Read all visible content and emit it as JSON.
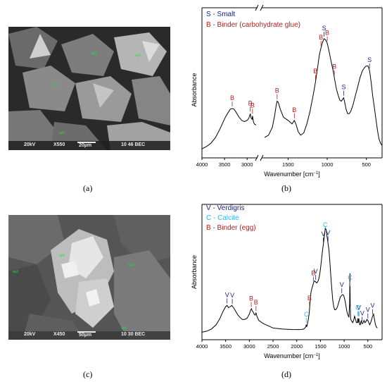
{
  "panels": {
    "a": {
      "label": "(a)"
    },
    "b": {
      "label": "(b)"
    },
    "c": {
      "label": "(c)"
    },
    "d": {
      "label": "(d)"
    }
  },
  "sem_a": {
    "info": {
      "kv": "20kV",
      "mag": "X550",
      "scale": "20µm",
      "code": "10 46 BEC"
    },
    "spots": [
      "sp1",
      "sp2",
      "sp3",
      "sp4"
    ]
  },
  "sem_c": {
    "info": {
      "kv": "20kV",
      "mag": "X450",
      "scale": "50µm",
      "code": "10 30 BEC"
    },
    "spots": [
      "sp1",
      "sp2",
      "sp3",
      "sp4"
    ]
  },
  "colors": {
    "smalt": "#1a237e",
    "binder": "#b71c1c",
    "verdigris": "#1a237e",
    "calcite": "#29b6f6",
    "spectrum": "#000000"
  },
  "chart_data": [
    {
      "type": "line",
      "panel": "b",
      "xlabel": "Wavenumber [cm",
      "xlabel_sup": "−1",
      "xlabel_end": "]",
      "ylabel": "Absorbance",
      "x_ticks": [
        "4000",
        "3500",
        "3000",
        "1500",
        "1000",
        "500"
      ],
      "axis_break": true,
      "legend": [
        {
          "text": "S - Smalt",
          "color": "#1a237e"
        },
        {
          "text": "B - Binder (carbohydrate glue)",
          "color": "#b71c1c"
        }
      ],
      "peaks": [
        {
          "letter": "B",
          "x": 3330,
          "color": "#b71c1c"
        },
        {
          "letter": "B",
          "x": 2930,
          "color": "#b71c1c"
        },
        {
          "letter": "B",
          "x": 2880,
          "color": "#b71c1c"
        },
        {
          "letter": "B",
          "x": 1640,
          "color": "#b71c1c"
        },
        {
          "letter": "B",
          "x": 1420,
          "color": "#b71c1c"
        },
        {
          "letter": "B",
          "x": 1150,
          "color": "#b71c1c"
        },
        {
          "letter": "B",
          "x": 1080,
          "color": "#b71c1c"
        },
        {
          "letter": "S",
          "x": 1040,
          "color": "#1a237e"
        },
        {
          "letter": "B",
          "x": 1000,
          "color": "#b71c1c"
        },
        {
          "letter": "B",
          "x": 910,
          "color": "#b71c1c"
        },
        {
          "letter": "S",
          "x": 790,
          "color": "#1a237e"
        },
        {
          "letter": "S",
          "x": 460,
          "color": "#1a237e"
        }
      ],
      "series_left": {
        "x": [
          4000,
          3900,
          3800,
          3700,
          3620,
          3550,
          3480,
          3420,
          3370,
          3330,
          3290,
          3240,
          3180,
          3120,
          3060,
          3000,
          2960,
          2930,
          2910,
          2890,
          2880,
          2860,
          2840,
          2800
        ],
        "y": [
          0.03,
          0.05,
          0.08,
          0.13,
          0.19,
          0.25,
          0.31,
          0.35,
          0.38,
          0.385,
          0.38,
          0.35,
          0.31,
          0.28,
          0.27,
          0.28,
          0.3,
          0.34,
          0.3,
          0.29,
          0.32,
          0.27,
          0.25,
          0.24
        ]
      },
      "series_right": {
        "x": [
          1800,
          1750,
          1700,
          1670,
          1650,
          1640,
          1625,
          1600,
          1560,
          1520,
          1480,
          1450,
          1420,
          1400,
          1370,
          1340,
          1300,
          1260,
          1220,
          1180,
          1150,
          1120,
          1100,
          1080,
          1060,
          1040,
          1020,
          1000,
          980,
          950,
          920,
          900,
          880,
          860,
          840,
          820,
          800,
          790,
          780,
          760,
          740,
          720,
          700,
          670,
          640,
          610,
          580,
          550,
          520,
          500,
          480,
          460,
          440,
          420,
          400,
          380,
          360,
          340,
          320,
          300
        ],
        "y": [
          0.13,
          0.15,
          0.22,
          0.33,
          0.42,
          0.45,
          0.44,
          0.38,
          0.31,
          0.29,
          0.27,
          0.25,
          0.28,
          0.25,
          0.18,
          0.15,
          0.17,
          0.25,
          0.36,
          0.5,
          0.62,
          0.76,
          0.86,
          0.92,
          0.97,
          1.0,
          0.99,
          0.96,
          0.9,
          0.8,
          0.7,
          0.62,
          0.55,
          0.5,
          0.46,
          0.45,
          0.47,
          0.48,
          0.45,
          0.38,
          0.34,
          0.34,
          0.36,
          0.42,
          0.5,
          0.58,
          0.66,
          0.72,
          0.75,
          0.76,
          0.76,
          0.72,
          0.62,
          0.5,
          0.4,
          0.3,
          0.2,
          0.12,
          0.08,
          0.06
        ]
      }
    },
    {
      "type": "line",
      "panel": "d",
      "xlabel": "Wavenumber [cm",
      "xlabel_sup": "−1",
      "xlabel_end": "]",
      "ylabel": "Absorbance",
      "x_ticks": [
        "4000",
        "3500",
        "3000",
        "2500",
        "2000",
        "1500",
        "1000",
        "500"
      ],
      "axis_break": false,
      "legend": [
        {
          "text": "V - Verdigris",
          "color": "#1a237e"
        },
        {
          "text": "C - Calcite",
          "color": "#29b6f6"
        },
        {
          "text": "B - Binder (egg)",
          "color": "#b71c1c"
        }
      ],
      "peaks": [
        {
          "letter": "V",
          "x": 3470,
          "color": "#1a237e"
        },
        {
          "letter": "V",
          "x": 3360,
          "color": "#1a237e"
        },
        {
          "letter": "B",
          "x": 2960,
          "color": "#b71c1c"
        },
        {
          "letter": "B",
          "x": 2860,
          "color": "#b71c1c"
        },
        {
          "letter": "C",
          "x": 1800,
          "color": "#29b6f6"
        },
        {
          "letter": "B",
          "x": 1730,
          "color": "#b71c1c"
        },
        {
          "letter": "B",
          "x": 1650,
          "color": "#b71c1c"
        },
        {
          "letter": "V",
          "x": 1600,
          "color": "#1a237e"
        },
        {
          "letter": "V",
          "x": 1440,
          "color": "#1a237e"
        },
        {
          "letter": "C",
          "x": 1400,
          "color": "#29b6f6"
        },
        {
          "letter": "V",
          "x": 1340,
          "color": "#1a237e"
        },
        {
          "letter": "V",
          "x": 1050,
          "color": "#1a237e"
        },
        {
          "letter": "C",
          "x": 875,
          "color": "#29b6f6"
        },
        {
          "letter": "C",
          "x": 712,
          "color": "#29b6f6"
        },
        {
          "letter": "V",
          "x": 690,
          "color": "#1a237e"
        },
        {
          "letter": "V",
          "x": 620,
          "color": "#1a237e"
        },
        {
          "letter": "V",
          "x": 500,
          "color": "#1a237e"
        },
        {
          "letter": "V",
          "x": 400,
          "color": "#1a237e"
        }
      ],
      "series": {
        "x": [
          4000,
          3900,
          3800,
          3700,
          3620,
          3560,
          3500,
          3470,
          3440,
          3400,
          3370,
          3350,
          3320,
          3280,
          3240,
          3200,
          3150,
          3100,
          3050,
          3000,
          2970,
          2955,
          2940,
          2920,
          2900,
          2880,
          2860,
          2840,
          2800,
          2700,
          2600,
          2500,
          2400,
          2300,
          2200,
          2100,
          2000,
          1950,
          1900,
          1850,
          1810,
          1800,
          1790,
          1780,
          1760,
          1740,
          1720,
          1700,
          1680,
          1660,
          1640,
          1620,
          1600,
          1580,
          1560,
          1540,
          1520,
          1500,
          1480,
          1460,
          1440,
          1420,
          1400,
          1380,
          1360,
          1340,
          1320,
          1300,
          1280,
          1260,
          1240,
          1220,
          1200,
          1180,
          1160,
          1140,
          1120,
          1100,
          1080,
          1060,
          1040,
          1020,
          1000,
          980,
          960,
          940,
          920,
          900,
          885,
          878,
          872,
          865,
          850,
          820,
          800,
          780,
          760,
          740,
          720,
          712,
          705,
          700,
          690,
          680,
          670,
          660,
          650,
          640,
          630,
          620,
          600,
          580,
          560,
          540,
          520,
          500,
          480,
          460,
          440,
          420,
          400,
          380,
          360,
          340,
          320,
          300
        ],
        "y": [
          0.03,
          0.04,
          0.06,
          0.1,
          0.16,
          0.22,
          0.27,
          0.28,
          0.26,
          0.27,
          0.28,
          0.27,
          0.25,
          0.22,
          0.19,
          0.17,
          0.15,
          0.15,
          0.16,
          0.2,
          0.24,
          0.25,
          0.23,
          0.22,
          0.2,
          0.19,
          0.21,
          0.18,
          0.14,
          0.11,
          0.09,
          0.07,
          0.065,
          0.06,
          0.058,
          0.056,
          0.055,
          0.055,
          0.056,
          0.06,
          0.08,
          0.1,
          0.08,
          0.1,
          0.14,
          0.2,
          0.3,
          0.4,
          0.44,
          0.47,
          0.5,
          0.51,
          0.5,
          0.49,
          0.5,
          0.52,
          0.56,
          0.62,
          0.7,
          0.78,
          0.85,
          0.92,
          1.0,
          0.99,
          0.92,
          0.86,
          0.8,
          0.68,
          0.55,
          0.43,
          0.33,
          0.27,
          0.24,
          0.24,
          0.25,
          0.27,
          0.3,
          0.33,
          0.36,
          0.37,
          0.38,
          0.38,
          0.36,
          0.32,
          0.27,
          0.22,
          0.19,
          0.17,
          0.3,
          0.58,
          0.3,
          0.16,
          0.14,
          0.12,
          0.14,
          0.18,
          0.15,
          0.12,
          0.12,
          0.16,
          0.12,
          0.13,
          0.16,
          0.12,
          0.1,
          0.1,
          0.12,
          0.14,
          0.12,
          0.11,
          0.12,
          0.14,
          0.12,
          0.13,
          0.15,
          0.14,
          0.12,
          0.1,
          0.12,
          0.15,
          0.18,
          0.2,
          0.15,
          0.1,
          0.08,
          0.07
        ]
      }
    }
  ]
}
